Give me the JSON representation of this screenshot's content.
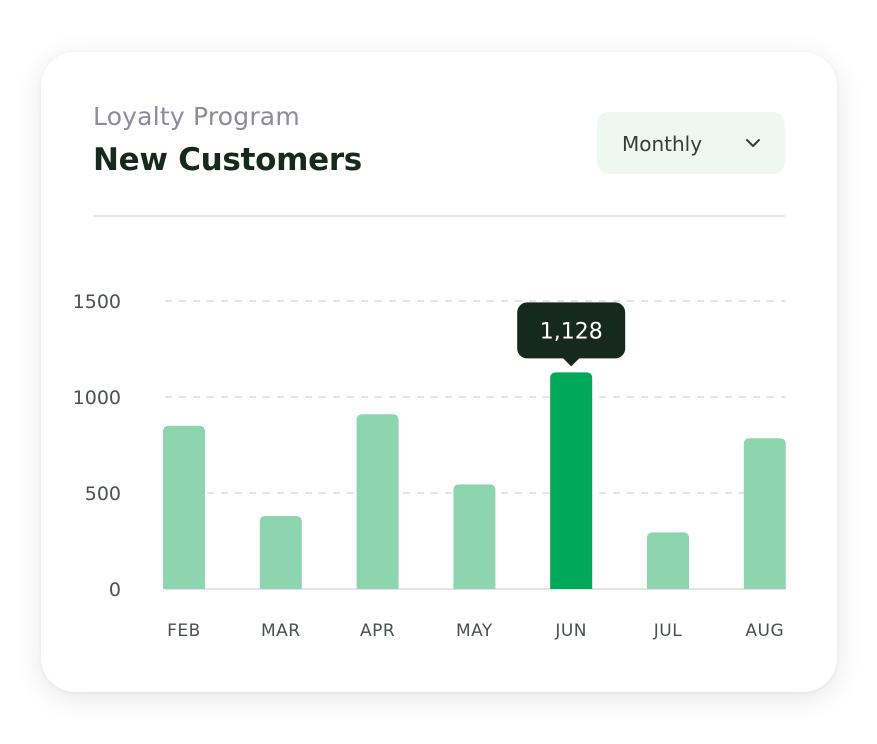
{
  "header": {
    "subtitle": "Loyalty Program",
    "title": "New Customers"
  },
  "period_select": {
    "value": "Monthly",
    "icon": "chevron-down-icon"
  },
  "colors": {
    "bar": "#8dd5ae",
    "bar_highlight": "#00a85a",
    "tooltip_bg": "#16291d",
    "gridline": "#dcdcdc",
    "axis_text": "#4a524d"
  },
  "chart_data": {
    "type": "bar",
    "categories": [
      "FEB",
      "MAR",
      "APR",
      "MAY",
      "JUN",
      "JUL",
      "AUG"
    ],
    "values": [
      850,
      380,
      910,
      545,
      1128,
      295,
      785
    ],
    "yticks": [
      0,
      500,
      1000,
      1500
    ],
    "ylim": [
      0,
      1500
    ],
    "grid": true,
    "highlight_index": 4,
    "tooltip": {
      "category": "JUN",
      "label": "1,128"
    }
  }
}
